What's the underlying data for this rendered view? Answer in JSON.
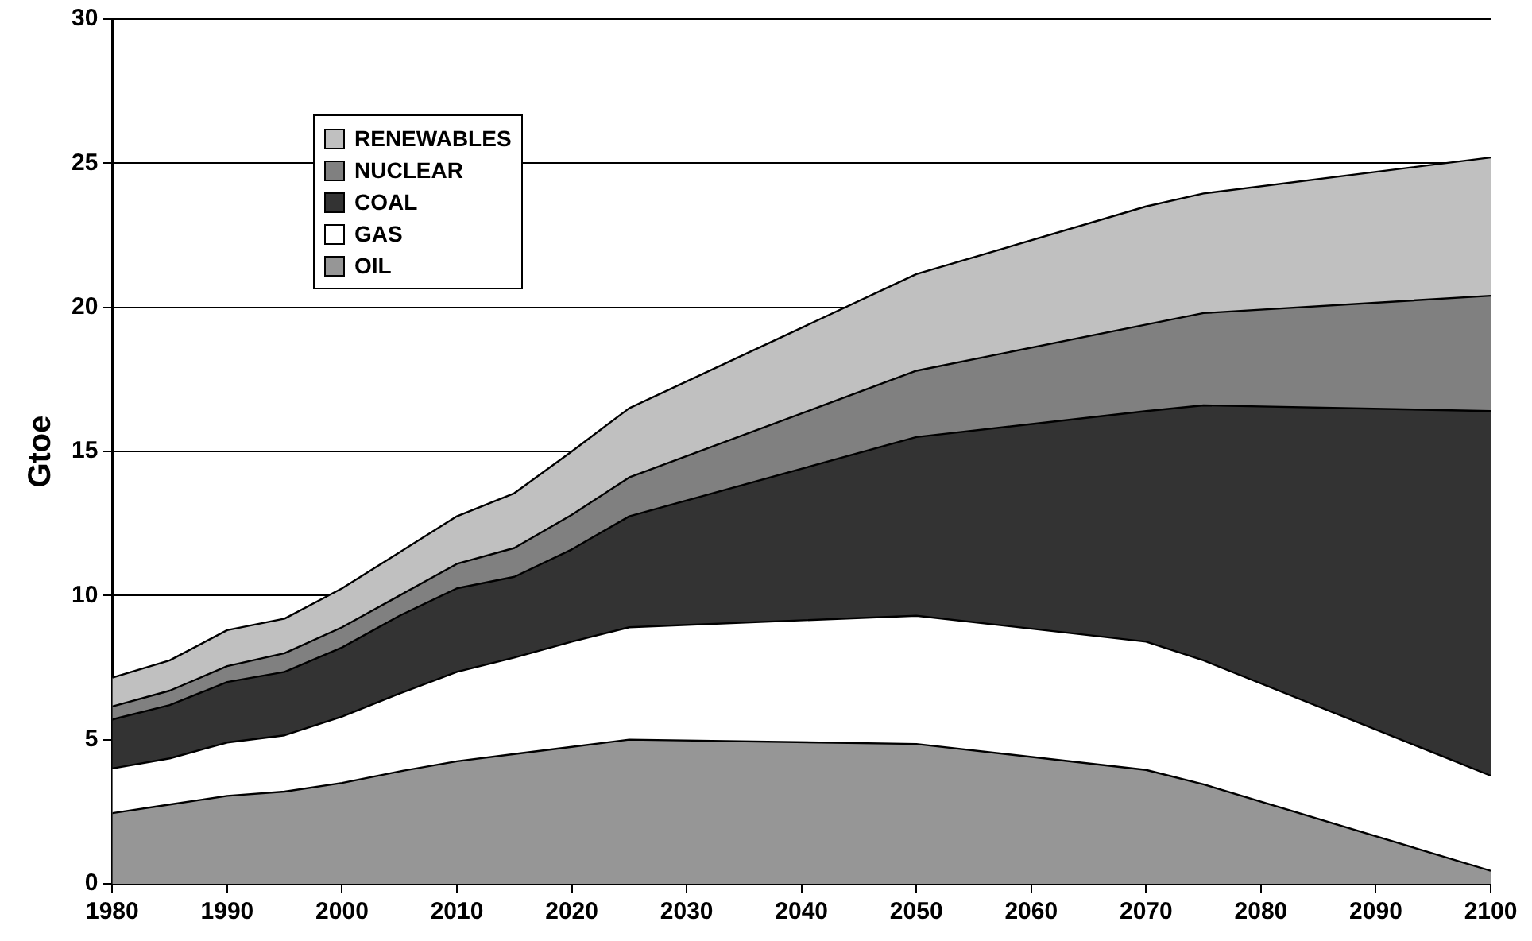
{
  "chart_data": {
    "type": "area",
    "stacked": true,
    "ylabel": "Gtoe",
    "x": [
      1980,
      1985,
      1990,
      1995,
      2000,
      2005,
      2010,
      2015,
      2020,
      2025,
      2050,
      2070,
      2075,
      2100
    ],
    "xlim": [
      1980,
      2100
    ],
    "xticks": [
      1980,
      1990,
      2000,
      2010,
      2020,
      2030,
      2040,
      2050,
      2060,
      2070,
      2080,
      2090,
      2100
    ],
    "ylim": [
      0,
      30
    ],
    "yticks": [
      0,
      5,
      10,
      15,
      20,
      25,
      30
    ],
    "grid": "y",
    "legend": "top left",
    "series": [
      {
        "name": "OIL",
        "color": "#969696",
        "values": [
          2.45,
          2.75,
          3.05,
          3.2,
          3.5,
          3.9,
          4.25,
          4.5,
          4.75,
          5.0,
          4.85,
          3.95,
          3.45,
          0.45
        ]
      },
      {
        "name": "GAS",
        "color": "#ffffff",
        "values": [
          1.55,
          1.6,
          1.85,
          1.95,
          2.3,
          2.7,
          3.1,
          3.35,
          3.65,
          3.9,
          4.45,
          4.45,
          4.3,
          3.3
        ]
      },
      {
        "name": "COAL",
        "color": "#333333",
        "values": [
          1.7,
          1.85,
          2.1,
          2.2,
          2.4,
          2.7,
          2.9,
          2.8,
          3.2,
          3.85,
          6.2,
          8.0,
          8.85,
          12.65
        ]
      },
      {
        "name": "NUCLEAR",
        "color": "#808080",
        "values": [
          0.45,
          0.5,
          0.55,
          0.65,
          0.7,
          0.7,
          0.85,
          1.0,
          1.2,
          1.35,
          2.3,
          3.0,
          3.2,
          4.0
        ]
      },
      {
        "name": "RENEWABLES",
        "color": "#c0c0c0",
        "values": [
          1.0,
          1.05,
          1.25,
          1.2,
          1.35,
          1.5,
          1.65,
          1.9,
          2.2,
          2.4,
          3.35,
          4.1,
          4.15,
          4.8
        ]
      }
    ]
  }
}
